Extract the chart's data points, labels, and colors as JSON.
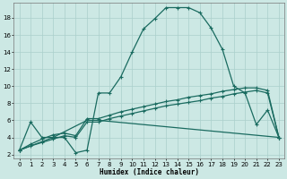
{
  "xlabel": "Humidex (Indice chaleur)",
  "bg_color": "#cce8e4",
  "grid_color": "#aacfcb",
  "line_color": "#1a6b60",
  "xlim": [
    -0.5,
    23.5
  ],
  "ylim": [
    1.5,
    19.8
  ],
  "yticks": [
    2,
    4,
    6,
    8,
    10,
    12,
    14,
    16,
    18
  ],
  "xticks": [
    0,
    1,
    2,
    3,
    4,
    5,
    6,
    7,
    8,
    9,
    10,
    11,
    12,
    13,
    14,
    15,
    16,
    17,
    18,
    19,
    20,
    21,
    22,
    23
  ],
  "line1_x": [
    0,
    1,
    2,
    3,
    4,
    5,
    6,
    7,
    8,
    9,
    10,
    11,
    12,
    13,
    14,
    15,
    16,
    17,
    18,
    19,
    20,
    21,
    22,
    23
  ],
  "line1_y": [
    2.5,
    5.8,
    4.0,
    4.0,
    4.0,
    2.2,
    2.5,
    9.2,
    9.2,
    11.1,
    14.0,
    16.7,
    17.9,
    19.2,
    19.2,
    19.2,
    18.6,
    16.8,
    14.3,
    10.0,
    9.2,
    5.5,
    7.2,
    4.0
  ],
  "line2_x": [
    0,
    3,
    6,
    7,
    23
  ],
  "line2_y": [
    2.5,
    4.0,
    6.0,
    6.0,
    4.0
  ],
  "line3_x": [
    0,
    1,
    2,
    3,
    4,
    5,
    6,
    7,
    8,
    9,
    10,
    11,
    12,
    13,
    14,
    15,
    16,
    17,
    18,
    19,
    20,
    21,
    22,
    23
  ],
  "line3_y": [
    2.5,
    3.0,
    3.4,
    3.8,
    4.2,
    4.0,
    5.8,
    5.8,
    6.2,
    6.5,
    6.8,
    7.1,
    7.4,
    7.7,
    7.9,
    8.1,
    8.3,
    8.6,
    8.8,
    9.1,
    9.3,
    9.5,
    9.2,
    4.0
  ],
  "line4_x": [
    0,
    1,
    2,
    3,
    4,
    5,
    6,
    7,
    8,
    9,
    10,
    11,
    12,
    13,
    14,
    15,
    16,
    17,
    18,
    19,
    20,
    21,
    22,
    23
  ],
  "line4_y": [
    2.5,
    3.2,
    3.8,
    4.3,
    4.5,
    4.2,
    6.2,
    6.2,
    6.6,
    7.0,
    7.3,
    7.6,
    7.9,
    8.2,
    8.4,
    8.7,
    8.9,
    9.1,
    9.4,
    9.6,
    9.8,
    9.8,
    9.5,
    4.0
  ]
}
